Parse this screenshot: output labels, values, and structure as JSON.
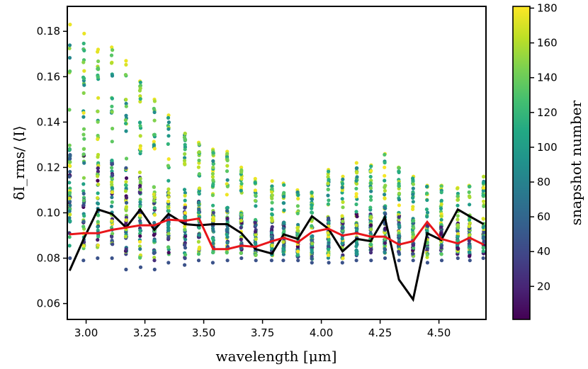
{
  "chart_data": {
    "type": "scatter",
    "title": "",
    "xlabel": "wavelength [μm]",
    "ylabel": "δI_rms/ ⟨I⟩",
    "colorbar_label": "snapshot number",
    "xlim": [
      2.92,
      4.7
    ],
    "ylim": [
      0.053,
      0.191
    ],
    "x_ticks": [
      3.0,
      3.25,
      3.5,
      3.75,
      4.0,
      4.25,
      4.5
    ],
    "x_tick_labels": [
      "3.00",
      "3.25",
      "3.50",
      "3.75",
      "4.00",
      "4.25",
      "4.50"
    ],
    "y_ticks": [
      0.06,
      0.08,
      0.1,
      0.12,
      0.14,
      0.16,
      0.18
    ],
    "y_tick_labels": [
      "0.06",
      "0.08",
      "0.10",
      "0.12",
      "0.14",
      "0.16",
      "0.18"
    ],
    "colorbar_range": [
      1,
      181
    ],
    "colorbar_ticks": [
      20,
      40,
      60,
      80,
      100,
      120,
      140,
      160,
      180
    ],
    "colorbar_tick_labels": [
      "20",
      "40",
      "60",
      "80",
      "100",
      "120",
      "140",
      "160",
      "180"
    ],
    "colormap": "viridis",
    "scatter_columns": [
      {
        "x": 2.93,
        "min": 0.08,
        "max": 0.183
      },
      {
        "x": 2.99,
        "min": 0.079,
        "max": 0.179
      },
      {
        "x": 3.05,
        "min": 0.08,
        "max": 0.172
      },
      {
        "x": 3.11,
        "min": 0.08,
        "max": 0.173
      },
      {
        "x": 3.17,
        "min": 0.075,
        "max": 0.167
      },
      {
        "x": 3.23,
        "min": 0.076,
        "max": 0.158
      },
      {
        "x": 3.29,
        "min": 0.075,
        "max": 0.15
      },
      {
        "x": 3.35,
        "min": 0.078,
        "max": 0.143
      },
      {
        "x": 3.42,
        "min": 0.077,
        "max": 0.135
      },
      {
        "x": 3.48,
        "min": 0.079,
        "max": 0.131
      },
      {
        "x": 3.54,
        "min": 0.078,
        "max": 0.128
      },
      {
        "x": 3.6,
        "min": 0.079,
        "max": 0.127
      },
      {
        "x": 3.66,
        "min": 0.08,
        "max": 0.12
      },
      {
        "x": 3.72,
        "min": 0.079,
        "max": 0.115
      },
      {
        "x": 3.79,
        "min": 0.079,
        "max": 0.114
      },
      {
        "x": 3.84,
        "min": 0.079,
        "max": 0.113
      },
      {
        "x": 3.9,
        "min": 0.079,
        "max": 0.11
      },
      {
        "x": 3.96,
        "min": 0.078,
        "max": 0.109
      },
      {
        "x": 4.03,
        "min": 0.078,
        "max": 0.119
      },
      {
        "x": 4.09,
        "min": 0.078,
        "max": 0.116
      },
      {
        "x": 4.15,
        "min": 0.079,
        "max": 0.122
      },
      {
        "x": 4.21,
        "min": 0.079,
        "max": 0.121
      },
      {
        "x": 4.27,
        "min": 0.08,
        "max": 0.126
      },
      {
        "x": 4.33,
        "min": 0.079,
        "max": 0.12
      },
      {
        "x": 4.39,
        "min": 0.079,
        "max": 0.116
      },
      {
        "x": 4.45,
        "min": 0.078,
        "max": 0.112
      },
      {
        "x": 4.51,
        "min": 0.079,
        "max": 0.112
      },
      {
        "x": 4.58,
        "min": 0.08,
        "max": 0.111
      },
      {
        "x": 4.63,
        "min": 0.079,
        "max": 0.112
      },
      {
        "x": 4.69,
        "min": 0.08,
        "max": 0.116
      }
    ],
    "series": [
      {
        "name": "black line",
        "color": "#000000",
        "x": [
          2.93,
          2.99,
          3.05,
          3.11,
          3.17,
          3.23,
          3.29,
          3.35,
          3.42,
          3.48,
          3.54,
          3.6,
          3.66,
          3.72,
          3.79,
          3.84,
          3.9,
          3.96,
          4.03,
          4.09,
          4.15,
          4.21,
          4.27,
          4.33,
          4.39,
          4.45,
          4.51,
          4.58,
          4.63,
          4.69
        ],
        "y": [
          0.0745,
          0.0885,
          0.1015,
          0.0995,
          0.0935,
          0.1015,
          0.0925,
          0.0995,
          0.095,
          0.0945,
          0.095,
          0.095,
          0.091,
          0.084,
          0.082,
          0.0905,
          0.0885,
          0.0985,
          0.093,
          0.083,
          0.0885,
          0.0875,
          0.098,
          0.0705,
          0.0618,
          0.091,
          0.088,
          0.1015,
          0.0985,
          0.095
        ]
      },
      {
        "name": "red line",
        "color": "#e8161b",
        "x": [
          2.93,
          2.99,
          3.05,
          3.11,
          3.17,
          3.23,
          3.29,
          3.35,
          3.42,
          3.48,
          3.54,
          3.6,
          3.66,
          3.72,
          3.79,
          3.84,
          3.9,
          3.96,
          4.03,
          4.09,
          4.15,
          4.21,
          4.27,
          4.33,
          4.39,
          4.45,
          4.51,
          4.58,
          4.63,
          4.69
        ],
        "y": [
          0.0905,
          0.091,
          0.091,
          0.0925,
          0.0935,
          0.0945,
          0.0945,
          0.097,
          0.0965,
          0.0975,
          0.084,
          0.084,
          0.0855,
          0.085,
          0.0875,
          0.089,
          0.087,
          0.0915,
          0.093,
          0.09,
          0.091,
          0.0895,
          0.0895,
          0.086,
          0.0875,
          0.096,
          0.0885,
          0.0865,
          0.089,
          0.086
        ]
      }
    ]
  }
}
